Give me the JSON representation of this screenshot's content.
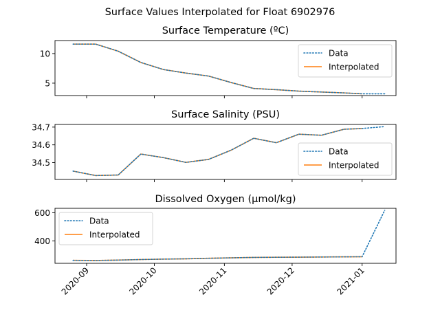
{
  "chart_data": {
    "type": "line",
    "suptitle": "Surface Values Interpolated for Float 6902976",
    "colors": {
      "data": "#1f77b4",
      "interpolated": "#ff7f0e"
    },
    "xticks": [
      {
        "date": "2020-09-01",
        "label": "2020-09"
      },
      {
        "date": "2020-10-01",
        "label": "2020-10"
      },
      {
        "date": "2020-11-01",
        "label": "2020-11"
      },
      {
        "date": "2020-12-01",
        "label": "2020-12"
      },
      {
        "date": "2021-01-01",
        "label": "2021-01"
      }
    ],
    "xlim": [
      "2020-08-18",
      "2021-01-16"
    ],
    "panels": [
      {
        "title": "Surface Temperature (ºC)",
        "ylim": [
          2.9,
          12.2
        ],
        "yticks": [
          5,
          10
        ],
        "legend_position": "upper-right",
        "series": [
          {
            "name": "Data",
            "style": "dotted",
            "x": [
              "2020-08-26",
              "2020-09-05",
              "2020-09-15",
              "2020-09-25",
              "2020-10-05",
              "2020-10-15",
              "2020-10-25",
              "2020-11-04",
              "2020-11-14",
              "2020-11-24",
              "2020-12-04",
              "2020-12-14",
              "2020-12-24",
              "2021-01-01",
              "2021-01-11"
            ],
            "y": [
              11.6,
              11.6,
              10.4,
              8.5,
              7.3,
              6.7,
              6.2,
              5.1,
              4.1,
              3.9,
              3.65,
              3.5,
              3.35,
              3.2,
              3.2
            ]
          },
          {
            "name": "Interpolated",
            "style": "solid",
            "x": [
              "2020-08-26",
              "2020-09-05",
              "2020-09-15",
              "2020-09-25",
              "2020-10-05",
              "2020-10-15",
              "2020-10-25",
              "2020-11-04",
              "2020-11-14",
              "2020-11-24",
              "2020-12-04",
              "2020-12-14",
              "2020-12-24",
              "2021-01-01"
            ],
            "y": [
              11.6,
              11.6,
              10.4,
              8.5,
              7.3,
              6.7,
              6.2,
              5.1,
              4.1,
              3.9,
              3.65,
              3.5,
              3.35,
              3.2
            ]
          }
        ]
      },
      {
        "title": "Surface Salinity (PSU)",
        "ylim": [
          34.405,
          34.715
        ],
        "yticks": [
          34.5,
          34.6,
          34.7
        ],
        "legend_position": "lower-right",
        "series": [
          {
            "name": "Data",
            "style": "dotted",
            "x": [
              "2020-08-26",
              "2020-09-05",
              "2020-09-15",
              "2020-09-25",
              "2020-10-05",
              "2020-10-15",
              "2020-10-25",
              "2020-11-04",
              "2020-11-14",
              "2020-11-24",
              "2020-12-04",
              "2020-12-14",
              "2020-12-24",
              "2021-01-01",
              "2021-01-11"
            ],
            "y": [
              34.452,
              34.427,
              34.43,
              34.548,
              34.528,
              34.501,
              34.518,
              34.57,
              34.637,
              34.612,
              34.66,
              34.654,
              34.688,
              34.692,
              34.703
            ]
          },
          {
            "name": "Interpolated",
            "style": "solid",
            "x": [
              "2020-08-26",
              "2020-09-05",
              "2020-09-15",
              "2020-09-25",
              "2020-10-05",
              "2020-10-15",
              "2020-10-25",
              "2020-11-04",
              "2020-11-14",
              "2020-11-24",
              "2020-12-04",
              "2020-12-14",
              "2020-12-24",
              "2021-01-01"
            ],
            "y": [
              34.452,
              34.427,
              34.43,
              34.548,
              34.528,
              34.501,
              34.518,
              34.57,
              34.637,
              34.612,
              34.66,
              34.654,
              34.688,
              34.692
            ]
          }
        ]
      },
      {
        "title": "Dissolved Oxygen (µmol/kg)",
        "ylim": [
          240,
          632
        ],
        "yticks": [
          400,
          600
        ],
        "legend_position": "upper-left",
        "series": [
          {
            "name": "Data",
            "style": "dotted",
            "x": [
              "2020-08-26",
              "2020-09-05",
              "2020-09-15",
              "2020-09-25",
              "2020-10-05",
              "2020-10-15",
              "2020-10-25",
              "2020-11-04",
              "2020-11-14",
              "2020-11-24",
              "2020-12-04",
              "2020-12-14",
              "2020-12-24",
              "2021-01-01",
              "2021-01-11"
            ],
            "y": [
              261,
              260,
              263,
              267,
              270,
              272,
              276,
              279,
              282,
              283,
              284,
              285,
              286,
              287,
              618
            ]
          },
          {
            "name": "Interpolated",
            "style": "solid",
            "x": [
              "2020-08-26",
              "2020-09-05",
              "2020-09-15",
              "2020-09-25",
              "2020-10-05",
              "2020-10-15",
              "2020-10-25",
              "2020-11-04",
              "2020-11-14",
              "2020-11-24",
              "2020-12-04",
              "2020-12-14",
              "2020-12-24",
              "2021-01-01"
            ],
            "y": [
              261,
              260,
              263,
              267,
              270,
              272,
              276,
              279,
              282,
              283,
              284,
              285,
              286,
              287
            ]
          }
        ]
      }
    ]
  }
}
